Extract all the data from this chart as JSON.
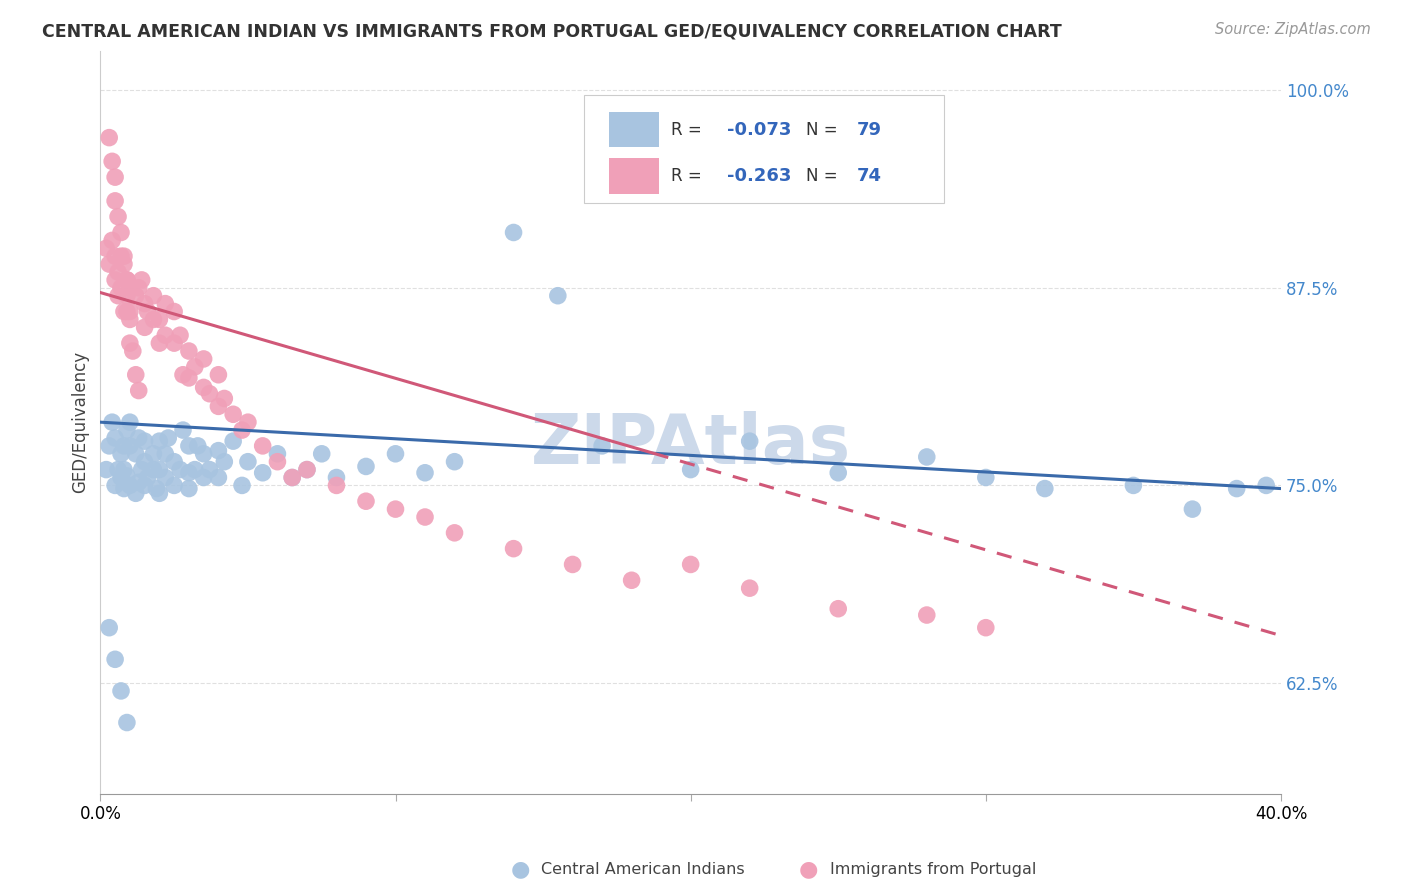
{
  "title": "CENTRAL AMERICAN INDIAN VS IMMIGRANTS FROM PORTUGAL GED/EQUIVALENCY CORRELATION CHART",
  "source": "Source: ZipAtlas.com",
  "ylabel": "GED/Equivalency",
  "xlabel": "",
  "xlim": [
    0.0,
    0.4
  ],
  "ylim": [
    0.555,
    1.025
  ],
  "yticks": [
    0.625,
    0.75,
    0.875,
    1.0
  ],
  "ytick_labels": [
    "62.5%",
    "75.0%",
    "87.5%",
    "100.0%"
  ],
  "xticks": [
    0.0,
    0.1,
    0.2,
    0.3,
    0.4
  ],
  "xtick_labels": [
    "0.0%",
    "",
    "",
    "",
    "40.0%"
  ],
  "background_color": "#ffffff",
  "grid_color": "#e0e0e0",
  "blue_color": "#a8c4e0",
  "pink_color": "#f0a0b8",
  "blue_line_color": "#3a6aaa",
  "pink_line_color": "#d05878",
  "watermark_color": "#ccd9ea",
  "footer_blue_label": "Central American Indians",
  "footer_pink_label": "Immigrants from Portugal",
  "blue_line_x0": 0.0,
  "blue_line_y0": 0.79,
  "blue_line_x1": 0.4,
  "blue_line_y1": 0.748,
  "pink_line_x0": 0.0,
  "pink_line_y0": 0.872,
  "pink_line_x1": 0.4,
  "pink_line_y1": 0.655,
  "blue_x": [
    0.002,
    0.003,
    0.004,
    0.005,
    0.005,
    0.006,
    0.007,
    0.007,
    0.008,
    0.008,
    0.008,
    0.009,
    0.009,
    0.01,
    0.01,
    0.01,
    0.012,
    0.012,
    0.013,
    0.013,
    0.014,
    0.015,
    0.015,
    0.015,
    0.016,
    0.018,
    0.018,
    0.019,
    0.02,
    0.02,
    0.02,
    0.022,
    0.022,
    0.023,
    0.025,
    0.025,
    0.027,
    0.028,
    0.03,
    0.03,
    0.03,
    0.032,
    0.033,
    0.035,
    0.035,
    0.037,
    0.04,
    0.04,
    0.042,
    0.045,
    0.048,
    0.05,
    0.055,
    0.06,
    0.065,
    0.07,
    0.075,
    0.08,
    0.09,
    0.1,
    0.11,
    0.12,
    0.14,
    0.155,
    0.17,
    0.2,
    0.22,
    0.25,
    0.28,
    0.3,
    0.32,
    0.35,
    0.37,
    0.385,
    0.395,
    0.003,
    0.005,
    0.007,
    0.009
  ],
  "blue_y": [
    0.76,
    0.775,
    0.79,
    0.75,
    0.78,
    0.76,
    0.755,
    0.77,
    0.748,
    0.775,
    0.76,
    0.785,
    0.756,
    0.75,
    0.775,
    0.79,
    0.745,
    0.77,
    0.752,
    0.78,
    0.76,
    0.75,
    0.778,
    0.765,
    0.755,
    0.77,
    0.76,
    0.748,
    0.778,
    0.76,
    0.745,
    0.77,
    0.755,
    0.78,
    0.765,
    0.75,
    0.76,
    0.785,
    0.775,
    0.758,
    0.748,
    0.76,
    0.775,
    0.755,
    0.77,
    0.76,
    0.772,
    0.755,
    0.765,
    0.778,
    0.75,
    0.765,
    0.758,
    0.77,
    0.755,
    0.76,
    0.77,
    0.755,
    0.762,
    0.77,
    0.758,
    0.765,
    0.91,
    0.87,
    0.775,
    0.76,
    0.778,
    0.758,
    0.768,
    0.755,
    0.748,
    0.75,
    0.735,
    0.748,
    0.75,
    0.66,
    0.64,
    0.62,
    0.6
  ],
  "pink_x": [
    0.002,
    0.003,
    0.004,
    0.005,
    0.005,
    0.006,
    0.006,
    0.007,
    0.007,
    0.008,
    0.008,
    0.009,
    0.009,
    0.01,
    0.01,
    0.012,
    0.013,
    0.014,
    0.015,
    0.015,
    0.016,
    0.018,
    0.018,
    0.02,
    0.02,
    0.022,
    0.022,
    0.025,
    0.025,
    0.027,
    0.028,
    0.03,
    0.03,
    0.032,
    0.035,
    0.035,
    0.037,
    0.04,
    0.04,
    0.042,
    0.045,
    0.048,
    0.05,
    0.055,
    0.06,
    0.065,
    0.07,
    0.08,
    0.09,
    0.1,
    0.11,
    0.12,
    0.14,
    0.16,
    0.18,
    0.2,
    0.22,
    0.25,
    0.28,
    0.3,
    0.003,
    0.004,
    0.005,
    0.005,
    0.006,
    0.007,
    0.008,
    0.009,
    0.009,
    0.01,
    0.01,
    0.011,
    0.012,
    0.013
  ],
  "pink_y": [
    0.9,
    0.89,
    0.905,
    0.895,
    0.88,
    0.885,
    0.87,
    0.895,
    0.875,
    0.89,
    0.86,
    0.88,
    0.87,
    0.875,
    0.86,
    0.87,
    0.875,
    0.88,
    0.865,
    0.85,
    0.86,
    0.855,
    0.87,
    0.855,
    0.84,
    0.845,
    0.865,
    0.84,
    0.86,
    0.845,
    0.82,
    0.835,
    0.818,
    0.825,
    0.812,
    0.83,
    0.808,
    0.82,
    0.8,
    0.805,
    0.795,
    0.785,
    0.79,
    0.775,
    0.765,
    0.755,
    0.76,
    0.75,
    0.74,
    0.735,
    0.73,
    0.72,
    0.71,
    0.7,
    0.69,
    0.7,
    0.685,
    0.672,
    0.668,
    0.66,
    0.97,
    0.955,
    0.945,
    0.93,
    0.92,
    0.91,
    0.895,
    0.88,
    0.86,
    0.855,
    0.84,
    0.835,
    0.82,
    0.81
  ]
}
